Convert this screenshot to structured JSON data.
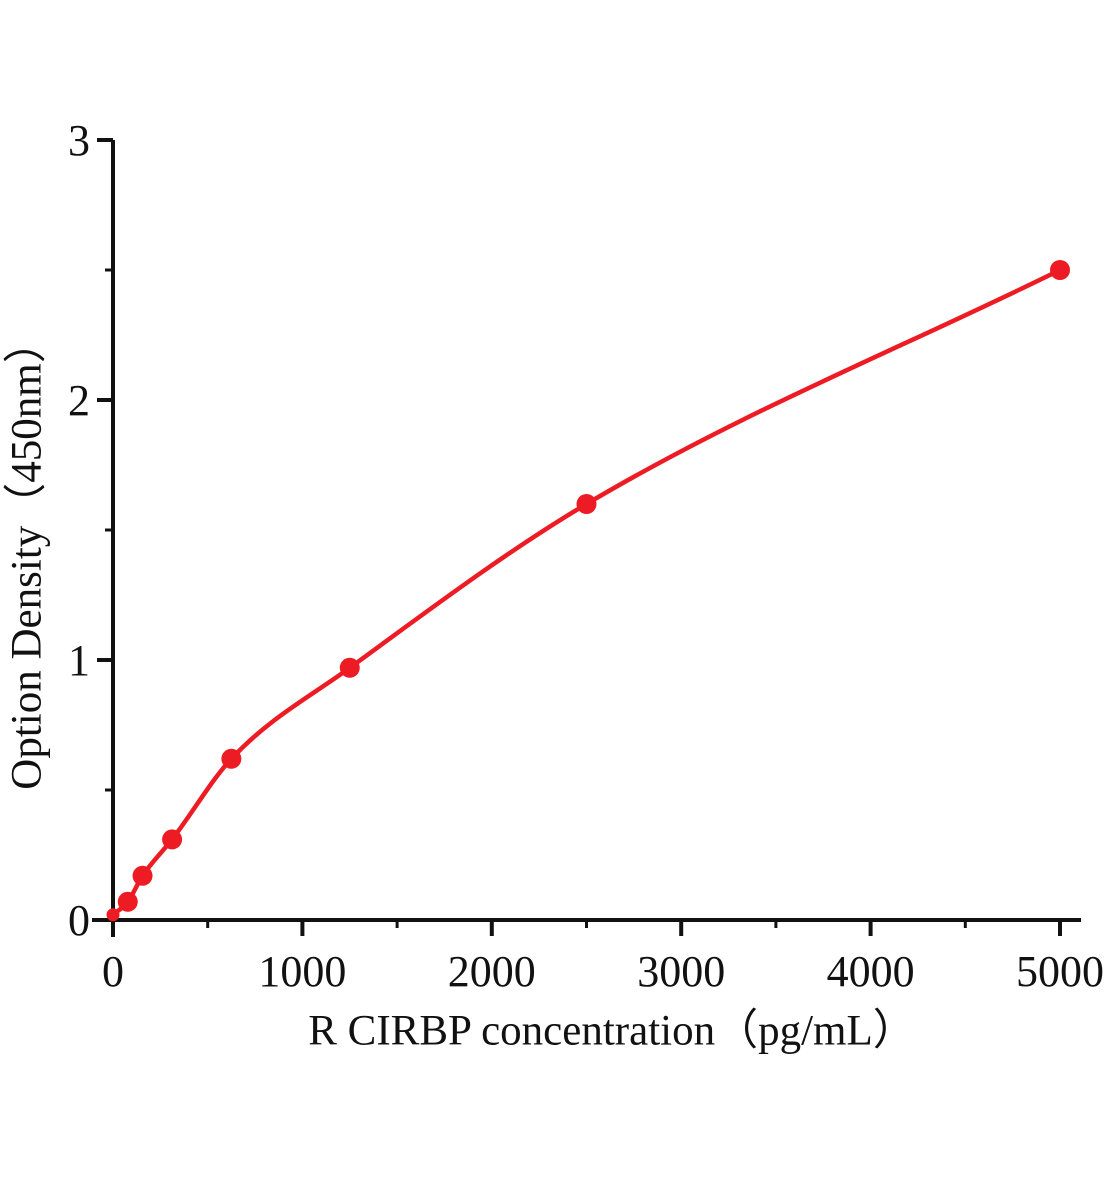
{
  "figure": {
    "background_color": "#ffffff",
    "kind": "ELISA standard curve plot"
  },
  "chart_data": {
    "type": "scatter",
    "title": "",
    "xlabel": "R CIRBP concentration（pg/mL）",
    "ylabel": "Option Density（450nm）",
    "x": [
      0,
      78,
      156,
      312,
      625,
      1250,
      2500,
      5000
    ],
    "y": [
      0.02,
      0.07,
      0.17,
      0.31,
      0.62,
      0.97,
      1.6,
      2.5
    ],
    "curve": "smooth monotone fit through all points",
    "xlim": [
      0,
      5000
    ],
    "ylim": [
      0,
      3
    ],
    "x_major_ticks": [
      0,
      1000,
      2000,
      3000,
      4000,
      5000
    ],
    "x_major_tick_labels": [
      "0",
      "1000",
      "2000",
      "3000",
      "4000",
      "5000"
    ],
    "x_minor_ticks": [
      500,
      1500,
      2500,
      3500,
      4500
    ],
    "y_major_ticks": [
      0,
      1,
      2,
      3
    ],
    "y_major_tick_labels": [
      "0",
      "1",
      "2",
      "3"
    ],
    "y_minor_ticks": [
      0.5,
      1.5,
      2.5
    ],
    "grid": false,
    "legend": null,
    "series_color": "#ed1c24",
    "axis_color": "#111111",
    "marker_shape": "circle",
    "marker_radius_px": 10,
    "origin_marker_radius_px": 6.5
  }
}
